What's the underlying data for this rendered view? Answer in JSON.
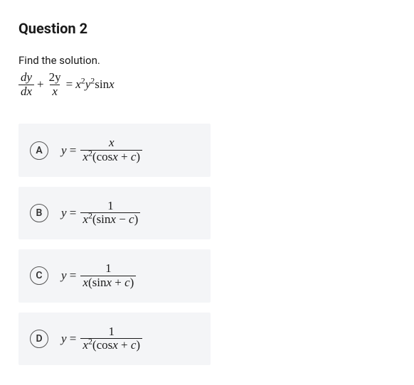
{
  "title": "Question 2",
  "prompt": "Find the solution.",
  "equation": {
    "frac1_num": "dy",
    "frac1_den": "dx",
    "plus": "+",
    "frac2_num": "2y",
    "frac2_den": "x",
    "equals": "=",
    "rhs_x": "x",
    "rhs_y": "y",
    "rhs_sin": "sin",
    "rhs_xv": "x",
    "sup2a": "2",
    "sup2b": "2"
  },
  "options": [
    {
      "letter": "A",
      "lhs_y": "y",
      "lhs_eq": " = ",
      "num": "x",
      "den_x": "x",
      "den_sup": "2",
      "den_open": "(",
      "den_fn": "cos",
      "den_xv": "x",
      "den_op": " + ",
      "den_c": "c",
      "den_close": ")"
    },
    {
      "letter": "B",
      "lhs_y": "y",
      "lhs_eq": " = ",
      "num": "1",
      "den_x": "x",
      "den_sup": "2",
      "den_open": "(",
      "den_fn": "sin",
      "den_xv": "x",
      "den_op": " − ",
      "den_c": "c",
      "den_close": ")"
    },
    {
      "letter": "C",
      "lhs_y": "y",
      "lhs_eq": " = ",
      "num": "1",
      "den_x": "x",
      "den_sup": "",
      "den_open": "(",
      "den_fn": "sin",
      "den_xv": "x",
      "den_op": " + ",
      "den_c": "c",
      "den_close": ")"
    },
    {
      "letter": "D",
      "lhs_y": "y",
      "lhs_eq": " = ",
      "num": "1",
      "den_x": "x",
      "den_sup": "2",
      "den_open": "(",
      "den_fn": "cos",
      "den_xv": "x",
      "den_op": " + ",
      "den_c": "c",
      "den_close": ")"
    }
  ],
  "colors": {
    "bg": "#ffffff",
    "text": "#1a1a1a",
    "option_bg": "#f4f5f7",
    "circle_border": "#555555"
  }
}
